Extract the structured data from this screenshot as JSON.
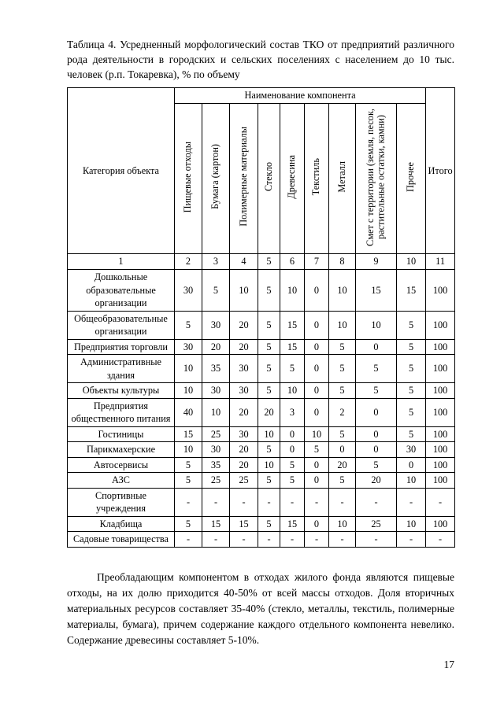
{
  "page": {
    "caption": "Таблица 4. Усредненный морфологический состав ТКО от предприятий различного рода деятельности в городских и сельских поселениях с населением до 10 тыс. человек (р.п. Токаревка), % по объему",
    "paragraph": "Преобладающим компонентом в отходах жилого фонда являются пищевые отходы, на их долю приходится 40-50% от всей массы отходов. Доля вторичных материальных ресурсов составляет 35-40% (стекло, металлы, текстиль, полимерные материалы, бумага), причем содержание каждого отдельного компонента невелико. Содержание древесины составляет 5-10%.",
    "page_number": "17"
  },
  "table": {
    "corner_header": "Категория объекта",
    "group_header": "Наименование компонента",
    "total_header": "Итого",
    "component_headers": [
      "Пищевые отходы",
      "Бумага (картон)",
      "Полимерные материалы",
      "Стекло",
      "Древесина",
      "Текстиль",
      "Металл",
      "Смет с территории (земля, песок, растительные остатки, камни)",
      "Прочее"
    ],
    "numbering_row": [
      "1",
      "2",
      "3",
      "4",
      "5",
      "6",
      "7",
      "8",
      "9",
      "10",
      "11"
    ],
    "rows": [
      {
        "category": "Дошкольные образовательные организации",
        "values": [
          "30",
          "5",
          "10",
          "5",
          "10",
          "0",
          "10",
          "15",
          "15",
          "100"
        ]
      },
      {
        "category": "Общеобразовательные организации",
        "values": [
          "5",
          "30",
          "20",
          "5",
          "15",
          "0",
          "10",
          "10",
          "5",
          "100"
        ]
      },
      {
        "category": "Предприятия торговли",
        "values": [
          "30",
          "20",
          "20",
          "5",
          "15",
          "0",
          "5",
          "0",
          "5",
          "100"
        ]
      },
      {
        "category": "Административные здания",
        "values": [
          "10",
          "35",
          "30",
          "5",
          "5",
          "0",
          "5",
          "5",
          "5",
          "100"
        ]
      },
      {
        "category": "Объекты культуры",
        "values": [
          "10",
          "30",
          "30",
          "5",
          "10",
          "0",
          "5",
          "5",
          "5",
          "100"
        ]
      },
      {
        "category": "Предприятия общественного питания",
        "values": [
          "40",
          "10",
          "20",
          "20",
          "3",
          "0",
          "2",
          "0",
          "5",
          "100"
        ]
      },
      {
        "category": "Гостиницы",
        "values": [
          "15",
          "25",
          "30",
          "10",
          "0",
          "10",
          "5",
          "0",
          "5",
          "100"
        ]
      },
      {
        "category": "Парикмахерские",
        "values": [
          "10",
          "30",
          "20",
          "5",
          "0",
          "5",
          "0",
          "0",
          "30",
          "100"
        ]
      },
      {
        "category": "Автосервисы",
        "values": [
          "5",
          "35",
          "20",
          "10",
          "5",
          "0",
          "20",
          "5",
          "0",
          "100"
        ]
      },
      {
        "category": "АЗС",
        "values": [
          "5",
          "25",
          "25",
          "5",
          "5",
          "0",
          "5",
          "20",
          "10",
          "100"
        ]
      },
      {
        "category": "Спортивные учреждения",
        "values": [
          "-",
          "-",
          "-",
          "-",
          "-",
          "-",
          "-",
          "-",
          "-",
          "-"
        ]
      },
      {
        "category": "Кладбища",
        "values": [
          "5",
          "15",
          "15",
          "5",
          "15",
          "0",
          "10",
          "25",
          "10",
          "100"
        ]
      },
      {
        "category": "Садовые товарищества",
        "values": [
          "-",
          "-",
          "-",
          "-",
          "-",
          "-",
          "-",
          "-",
          "-",
          "-"
        ]
      }
    ]
  }
}
